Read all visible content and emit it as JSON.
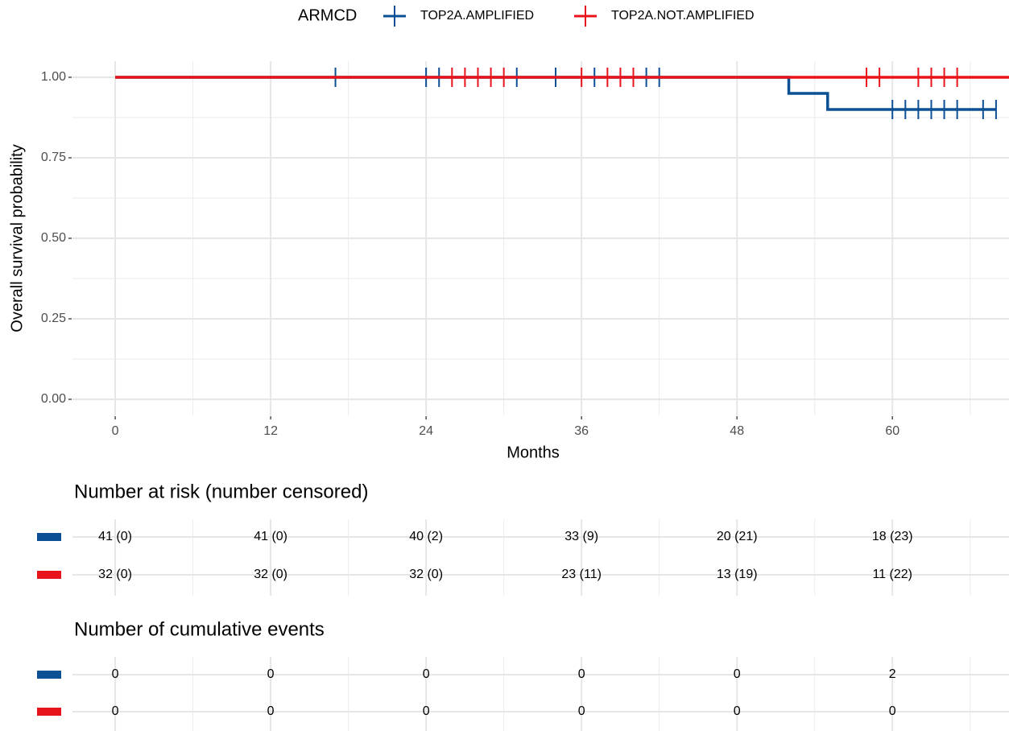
{
  "chart_data": {
    "type": "km",
    "xlabel": "Months",
    "ylabel": "Overall survival probability",
    "legend_title": "ARMCD",
    "legend_position": "top",
    "grid": true,
    "xlim": [
      -3.3,
      69
    ],
    "ylim": [
      -0.05,
      1.05
    ],
    "xticks": [
      0,
      12,
      24,
      36,
      48,
      60
    ],
    "yticks": [
      {
        "value": 0,
        "label": "0.00"
      },
      {
        "value": 0.25,
        "label": "0.25"
      },
      {
        "value": 0.5,
        "label": "0.50"
      },
      {
        "value": 0.75,
        "label": "0.75"
      },
      {
        "value": 1,
        "label": "1.00"
      }
    ],
    "x_minor_grid": [
      6,
      18,
      30,
      42,
      54,
      66
    ],
    "y_minor_grid": [
      0.125,
      0.375,
      0.625,
      0.875
    ],
    "series": [
      {
        "name": "TOP2A.AMPLIFIED",
        "color": "#0b4f94",
        "x": [
          0,
          52,
          55,
          68
        ],
        "values": [
          1,
          0.95,
          0.9,
          0.9
        ],
        "censor_x": [
          17,
          24,
          25,
          31,
          34,
          37,
          41,
          42,
          60,
          61,
          62,
          63,
          64,
          65,
          67,
          68
        ],
        "censor_values": [
          1,
          1,
          1,
          1,
          1,
          1,
          1,
          1,
          0.9,
          0.9,
          0.9,
          0.9,
          0.9,
          0.9,
          0.9,
          0.9
        ]
      },
      {
        "name": "TOP2A.NOT.AMPLIFIED",
        "color": "#e8141c",
        "x": [
          0,
          69
        ],
        "values": [
          1,
          1
        ],
        "censor_x": [
          26,
          27,
          28,
          29,
          30,
          36,
          38,
          39,
          40,
          58,
          59,
          62,
          63,
          64,
          65
        ],
        "censor_values": [
          1,
          1,
          1,
          1,
          1,
          1,
          1,
          1,
          1,
          1,
          1,
          1,
          1,
          1,
          1
        ]
      }
    ],
    "risk_table": {
      "title": "Number at risk (number censored)",
      "rows": [
        [
          "41 (0)",
          "41 (0)",
          "40 (2)",
          "33 (9)",
          "20 (21)",
          "18 (23)"
        ],
        [
          "32 (0)",
          "32 (0)",
          "32 (0)",
          "23 (11)",
          "13 (19)",
          "11 (22)"
        ]
      ]
    },
    "events_table": {
      "title": "Number of cumulative events",
      "rows": [
        [
          0,
          0,
          0,
          0,
          0,
          2
        ],
        [
          0,
          0,
          0,
          0,
          0,
          0
        ]
      ]
    }
  }
}
